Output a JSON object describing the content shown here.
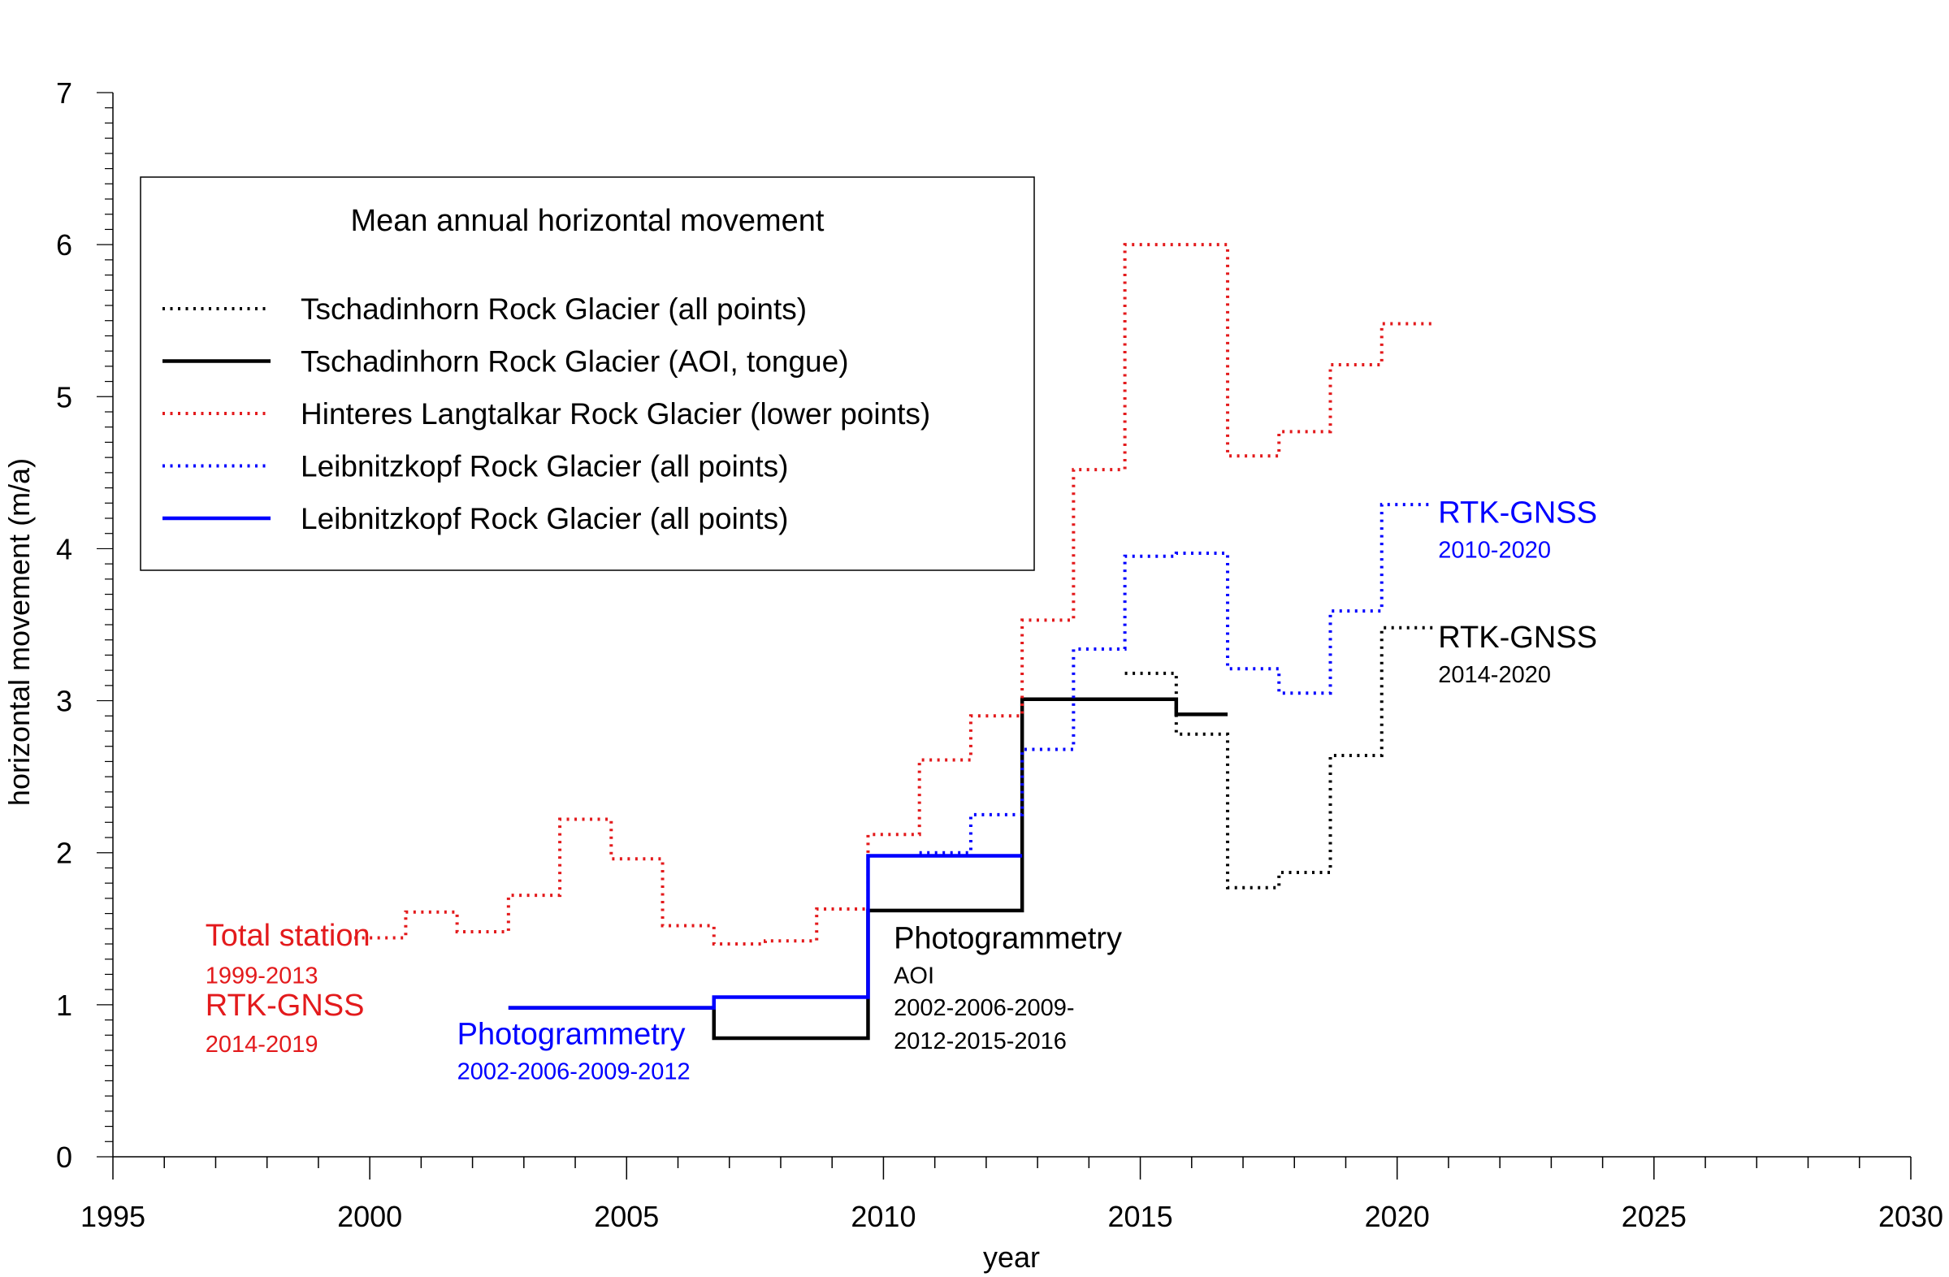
{
  "chart_data": {
    "type": "line",
    "title": "",
    "xlabel": "year",
    "ylabel": "horizontal movement (m/a)",
    "xlim": [
      1995,
      2030
    ],
    "ylim": [
      0,
      7
    ],
    "xticks": [
      1995,
      2000,
      2005,
      2010,
      2015,
      2020,
      2025,
      2030
    ],
    "yticks": [
      0,
      1,
      2,
      3,
      4,
      5,
      6,
      7
    ],
    "grid": false,
    "legend": {
      "title": "Mean annual horizontal movement",
      "placement": "top-left"
    },
    "series": [
      {
        "name": "Tschadinhorn Rock Glacier (all points)",
        "color": "#000000",
        "style": "dotted",
        "steps": [
          [
            2014.7,
            2015.7,
            3.18
          ],
          [
            2015.7,
            2016.7,
            2.78
          ],
          [
            2016.7,
            2017.7,
            1.77
          ],
          [
            2017.7,
            2018.7,
            1.87
          ],
          [
            2018.7,
            2019.7,
            2.64
          ],
          [
            2019.7,
            2020.7,
            3.48
          ]
        ]
      },
      {
        "name": "Tschadinhorn Rock Glacier (AOI, tongue)",
        "color": "#000000",
        "style": "solid",
        "steps": [
          [
            2002.7,
            2006.7,
            0.98
          ],
          [
            2006.7,
            2009.7,
            0.78
          ],
          [
            2009.7,
            2012.7,
            1.62
          ],
          [
            2012.7,
            2015.7,
            3.01
          ],
          [
            2015.7,
            2016.7,
            2.91
          ]
        ]
      },
      {
        "name": "Hinteres Langtalkar Rock Glacier (lower points)",
        "color": "#e31a1c",
        "style": "dotted",
        "steps": [
          [
            1999.7,
            2000.7,
            1.44
          ],
          [
            2000.7,
            2001.7,
            1.61
          ],
          [
            2001.7,
            2002.7,
            1.48
          ],
          [
            2002.7,
            2003.7,
            1.72
          ],
          [
            2003.7,
            2004.7,
            2.22
          ],
          [
            2004.7,
            2005.7,
            1.96
          ],
          [
            2005.7,
            2006.7,
            1.52
          ],
          [
            2006.7,
            2007.7,
            1.4
          ],
          [
            2007.7,
            2008.7,
            1.42
          ],
          [
            2008.7,
            2009.7,
            1.63
          ],
          [
            2009.7,
            2010.7,
            2.12
          ],
          [
            2010.7,
            2011.7,
            2.61
          ],
          [
            2011.7,
            2012.7,
            2.9
          ],
          [
            2012.7,
            2013.7,
            3.53
          ],
          [
            2013.7,
            2014.7,
            4.52
          ],
          [
            2014.7,
            2016.7,
            6.0
          ],
          [
            2016.7,
            2017.7,
            4.61
          ],
          [
            2017.7,
            2018.7,
            4.77
          ],
          [
            2018.7,
            2019.7,
            5.21
          ],
          [
            2019.7,
            2020.7,
            5.48
          ]
        ]
      },
      {
        "name": "Leibnitzkopf Rock Glacier (all points)",
        "color": "#0000ff",
        "style": "dotted",
        "steps": [
          [
            2010.7,
            2011.7,
            2.0
          ],
          [
            2011.7,
            2012.7,
            2.25
          ],
          [
            2012.7,
            2013.7,
            2.68
          ],
          [
            2013.7,
            2014.7,
            3.34
          ],
          [
            2014.7,
            2015.7,
            3.95
          ],
          [
            2015.7,
            2016.7,
            3.97
          ],
          [
            2016.7,
            2017.7,
            3.21
          ],
          [
            2017.7,
            2018.7,
            3.05
          ],
          [
            2018.7,
            2019.7,
            3.59
          ],
          [
            2019.7,
            2020.7,
            4.29
          ]
        ]
      },
      {
        "name": "Leibnitzkopf Rock Glacier (all points)",
        "color": "#0000ff",
        "style": "solid",
        "steps": [
          [
            2002.7,
            2006.7,
            0.98
          ],
          [
            2006.7,
            2009.7,
            1.05
          ],
          [
            2009.7,
            2012.7,
            1.98
          ]
        ]
      }
    ],
    "annotations": [
      {
        "id": "total-station",
        "text": "Total station",
        "x": 1996.8,
        "y": 1.39,
        "color": "#e31a1c",
        "size": "large"
      },
      {
        "id": "total-station-years",
        "text": "1999-2013",
        "x": 1996.8,
        "y": 1.14,
        "color": "#e31a1c",
        "size": "small"
      },
      {
        "id": "rtk-gnss-red",
        "text": "RTK-GNSS",
        "x": 1996.8,
        "y": 0.93,
        "color": "#e31a1c",
        "size": "large"
      },
      {
        "id": "rtk-gnss-red-years",
        "text": "2014-2019",
        "x": 1996.8,
        "y": 0.69,
        "color": "#e31a1c",
        "size": "small"
      },
      {
        "id": "photogrammetry-blue",
        "text": "Photogrammetry",
        "x": 2001.7,
        "y": 0.74,
        "color": "#0000ff",
        "size": "large"
      },
      {
        "id": "photogrammetry-blue-years",
        "text": "2002-2006-2009-2012",
        "x": 2001.7,
        "y": 0.51,
        "color": "#0000ff",
        "size": "small"
      },
      {
        "id": "photogrammetry-black",
        "text": "Photogrammetry",
        "x": 2010.2,
        "y": 1.37,
        "color": "#000000",
        "size": "large"
      },
      {
        "id": "photogrammetry-black-aoi",
        "text": "AOI",
        "x": 2010.2,
        "y": 1.14,
        "color": "#000000",
        "size": "small"
      },
      {
        "id": "photogrammetry-black-years-1",
        "text": "2002-2006-2009-",
        "x": 2010.2,
        "y": 0.93,
        "color": "#000000",
        "size": "small"
      },
      {
        "id": "photogrammetry-black-years-2",
        "text": "2012-2015-2016",
        "x": 2010.2,
        "y": 0.71,
        "color": "#000000",
        "size": "small"
      },
      {
        "id": "rtk-gnss-blue",
        "text": "RTK-GNSS",
        "x": 2020.8,
        "y": 4.17,
        "color": "#0000ff",
        "size": "large"
      },
      {
        "id": "rtk-gnss-blue-years",
        "text": "2010-2020",
        "x": 2020.8,
        "y": 3.94,
        "color": "#0000ff",
        "size": "small"
      },
      {
        "id": "rtk-gnss-black",
        "text": "RTK-GNSS",
        "x": 2020.8,
        "y": 3.35,
        "color": "#000000",
        "size": "large"
      },
      {
        "id": "rtk-gnss-black-years",
        "text": "2014-2020",
        "x": 2020.8,
        "y": 3.12,
        "color": "#000000",
        "size": "small"
      }
    ]
  }
}
